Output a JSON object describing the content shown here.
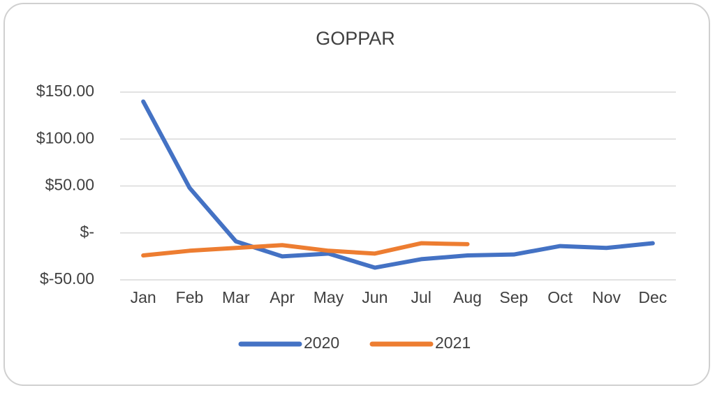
{
  "chart_data": {
    "type": "line",
    "title": "GOPPAR",
    "categories": [
      "Jan",
      "Feb",
      "Mar",
      "Apr",
      "May",
      "Jun",
      "Jul",
      "Aug",
      "Sep",
      "Oct",
      "Nov",
      "Dec"
    ],
    "series": [
      {
        "name": "2020",
        "color": "#4472c4",
        "values": [
          140,
          48,
          -9,
          -25,
          -22,
          -37,
          -28,
          -24,
          -23,
          -14,
          -16,
          -11
        ]
      },
      {
        "name": "2021",
        "color": "#ed7d31",
        "values": [
          -24,
          -19,
          -16,
          -13,
          -19,
          -22,
          -11,
          -12,
          null,
          null,
          null,
          null
        ]
      }
    ],
    "ylim": [
      -50,
      150
    ],
    "yticks": [
      {
        "value": -50,
        "label": "$-50.00"
      },
      {
        "value": 0,
        "label": "$-"
      },
      {
        "value": 50,
        "label": "$50.00"
      },
      {
        "value": 100,
        "label": "$100.00"
      },
      {
        "value": 150,
        "label": "$150.00"
      }
    ],
    "grid": true,
    "legend": "bottom"
  }
}
